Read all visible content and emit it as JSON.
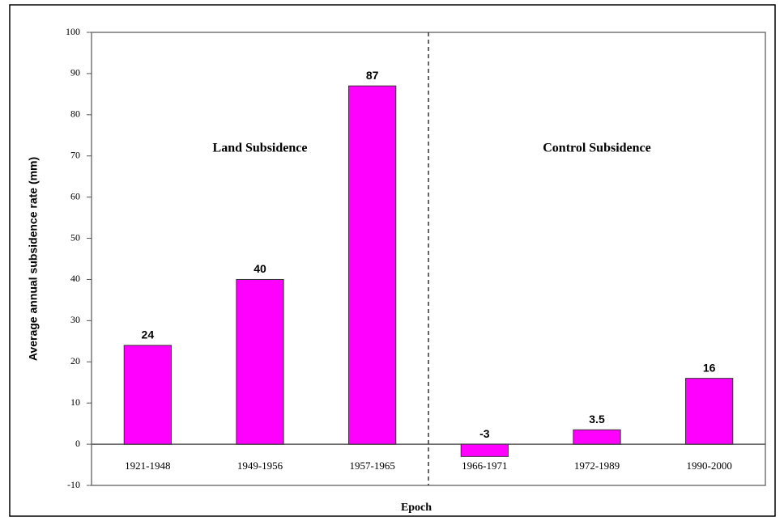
{
  "chart_data": {
    "type": "bar",
    "x_label": "Epoch",
    "y_label": "Average annual subsidence rate (mm)",
    "categories": [
      "1921-1948",
      "1949-1956",
      "1957-1965",
      "1966-1971",
      "1972-1989",
      "1990-2000"
    ],
    "values": [
      24,
      40,
      87,
      -3,
      3.5,
      16
    ],
    "color": "#ff00ff",
    "ylim": [
      -10,
      100
    ],
    "yticks": [
      -10,
      0,
      10,
      20,
      30,
      40,
      50,
      60,
      70,
      80,
      90,
      100
    ],
    "grid": false,
    "annotations": [
      "Land Subsidence",
      "Control Subsidence"
    ]
  }
}
